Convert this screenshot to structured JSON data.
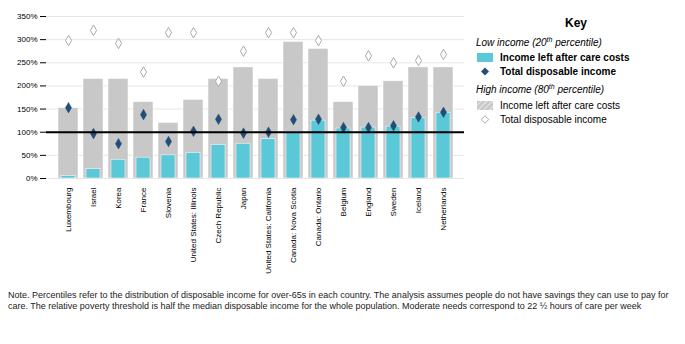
{
  "chart_data": {
    "type": "bar",
    "categories": [
      "Luxembourg",
      "Israel",
      "Korea",
      "France",
      "Slovenia",
      "United States: Illinois",
      "Czech Republic",
      "Japan",
      "United States: California",
      "Canada: Nova Scotia",
      "Canada: Ontario",
      "Belgium",
      "England",
      "Sweden",
      "Iceland",
      "Netherlands"
    ],
    "series": [
      {
        "name": "Income left after care costs",
        "group": "High income (80th percentile)",
        "type": "bar",
        "color": "#c8c8c8",
        "values": [
          152,
          215,
          215,
          165,
          120,
          170,
          215,
          240,
          215,
          295,
          280,
          165,
          200,
          210,
          240,
          240
        ]
      },
      {
        "name": "Income left after care costs",
        "group": "Low income (20th percentile)",
        "type": "bar",
        "color": "#5bc8d8",
        "values": [
          5,
          20,
          40,
          45,
          50,
          55,
          72,
          75,
          85,
          100,
          125,
          108,
          110,
          112,
          130,
          142
        ]
      },
      {
        "name": "Total disposable income",
        "group": "High income (80th percentile)",
        "type": "scatter",
        "marker": "open_diamond",
        "color": "#aaaaaa",
        "values": [
          298,
          320,
          292,
          230,
          315,
          315,
          210,
          275,
          315,
          315,
          298,
          210,
          265,
          250,
          255,
          268
        ]
      },
      {
        "name": "Total disposable income",
        "group": "Low income (20th percentile)",
        "type": "scatter",
        "marker": "diamond",
        "color": "#1f4e79",
        "values": [
          153,
          97,
          75,
          138,
          80,
          102,
          128,
          98,
          100,
          127,
          128,
          110,
          110,
          114,
          133,
          143
        ]
      }
    ],
    "poverty_line": {
      "value": 100,
      "color": "#000000"
    },
    "ylim": [
      0,
      350
    ],
    "yticks": [
      {
        "value": 0,
        "label": "0%"
      },
      {
        "value": 50,
        "label": "50%"
      },
      {
        "value": 100,
        "label": "100%"
      },
      {
        "value": 150,
        "label": "150%"
      },
      {
        "value": 200,
        "label": "200%"
      },
      {
        "value": 250,
        "label": "250%"
      },
      {
        "value": 300,
        "label": "300%"
      },
      {
        "value": 350,
        "label": "350%"
      }
    ],
    "grid": true,
    "key_title": "Key",
    "note": "Note. Percentiles refer to the distribution of disposable income for over-65s in each country. The analysis assumes people do not have savings they can use to pay for care. The relative poverty threshold is half the median disposable income for the whole population. Moderate needs correspond to 22 ½ hours of care per week"
  }
}
